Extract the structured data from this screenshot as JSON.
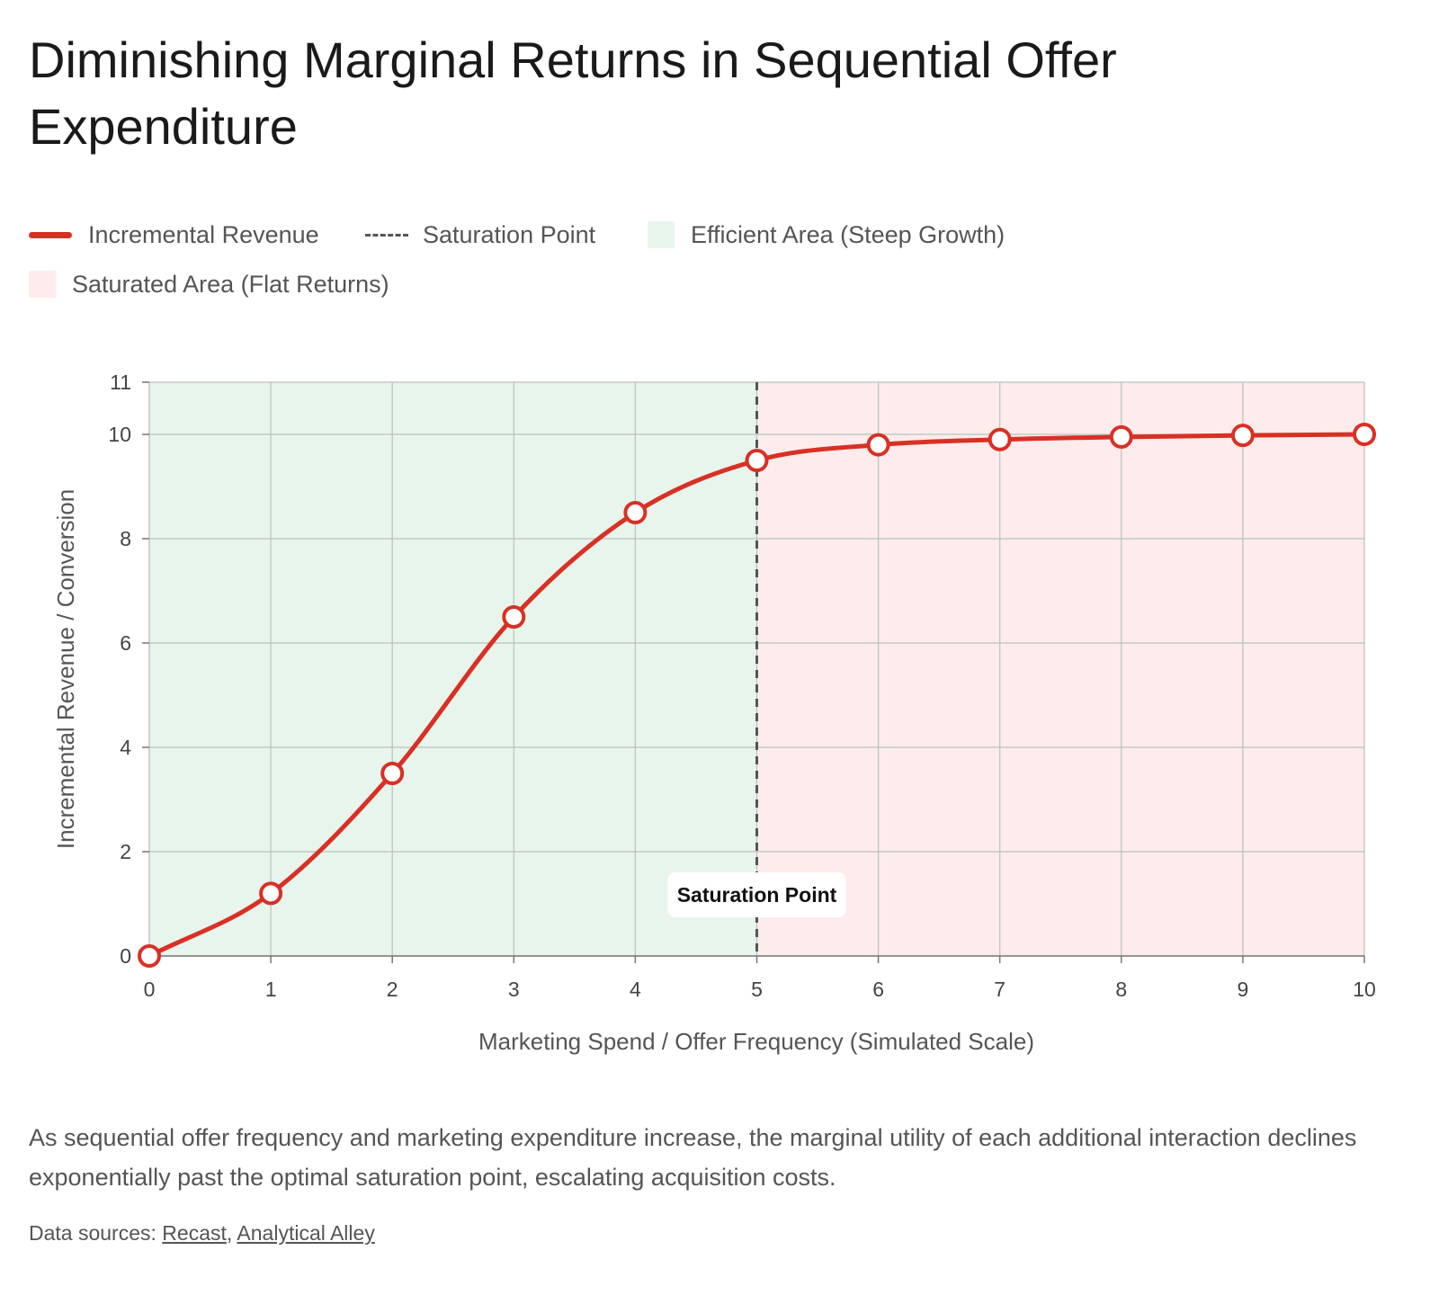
{
  "title": "Diminishing Marginal Returns in Sequential Offer Expenditure",
  "legend": {
    "incremental_revenue": "Incremental Revenue",
    "saturation_point": "Saturation Point",
    "efficient_area": "Efficient Area (Steep Growth)",
    "saturated_area": "Saturated Area (Flat Returns)"
  },
  "colors": {
    "line": "#d93025",
    "efficient_area": "#e8f5ec",
    "saturated_area": "#fdeceb",
    "saturation_line": "#555555"
  },
  "chart_data": {
    "type": "line",
    "x": [
      0,
      1,
      2,
      3,
      4,
      5,
      6,
      7,
      8,
      9,
      10
    ],
    "series": [
      {
        "name": "Incremental Revenue",
        "values": [
          0,
          1.2,
          3.5,
          6.5,
          8.5,
          9.5,
          9.8,
          9.9,
          9.95,
          9.98,
          10
        ]
      }
    ],
    "xlabel": "Marketing Spend / Offer Frequency (Simulated Scale)",
    "ylabel": "Incremental Revenue / Conversion",
    "xlim": [
      0,
      10
    ],
    "ylim": [
      0,
      11
    ],
    "x_ticks": [
      "0",
      "1",
      "2",
      "3",
      "4",
      "5",
      "6",
      "7",
      "8",
      "9",
      "10"
    ],
    "y_ticks": [
      {
        "value": 0,
        "label": "0"
      },
      {
        "value": 2,
        "label": "2"
      },
      {
        "value": 4,
        "label": "4"
      },
      {
        "value": 6,
        "label": "6"
      },
      {
        "value": 8,
        "label": "8"
      },
      {
        "value": 10,
        "label": "10"
      },
      {
        "value": 11,
        "label": "11"
      }
    ],
    "grid": true,
    "saturation_x": 5,
    "annotation": "Saturation Point",
    "regions": [
      {
        "name": "Efficient Area (Steep Growth)",
        "x_range": [
          0,
          5
        ]
      },
      {
        "name": "Saturated Area (Flat Returns)",
        "x_range": [
          5,
          10
        ]
      }
    ],
    "legend_position": "top"
  },
  "description": "As sequential offer frequency and marketing expenditure increase, the marginal utility of each additional interaction declines exponentially past the optimal saturation point, escalating acquisition costs.",
  "sources": {
    "prefix": "Data sources:",
    "links": [
      "Recast",
      "Analytical Alley"
    ]
  }
}
